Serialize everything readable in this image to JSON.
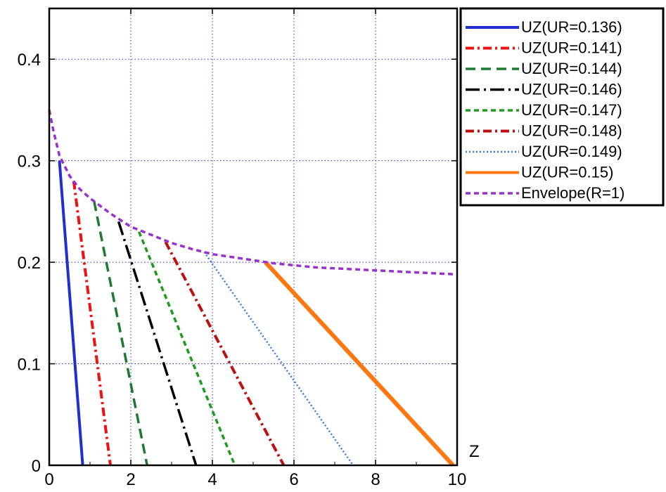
{
  "chart_data": {
    "type": "line",
    "xlabel": "Z",
    "ylabel": "",
    "xlim": [
      0,
      10
    ],
    "ylim": [
      0,
      0.45
    ],
    "x_ticks": [
      "0",
      "2",
      "4",
      "6",
      "8",
      "10"
    ],
    "y_ticks": [
      "0",
      "0.1",
      "0.2",
      "0.3",
      "0.4"
    ],
    "grid": true,
    "legend_position": "outside-right-top",
    "series": [
      {
        "name": "UZ(UR=0.136)",
        "color": "#1f2fd0",
        "dash": "solid",
        "points": [
          [
            0.25,
            0.3
          ],
          [
            0.82,
            0.0
          ]
        ]
      },
      {
        "name": "UZ(UR=0.141)",
        "color": "#ee1111",
        "dash": "dashdot",
        "points": [
          [
            0.6,
            0.28
          ],
          [
            1.5,
            0.0
          ]
        ]
      },
      {
        "name": "UZ(UR=0.144)",
        "color": "#1e7a30",
        "dash": "dashed",
        "points": [
          [
            1.1,
            0.26
          ],
          [
            2.4,
            0.0
          ]
        ]
      },
      {
        "name": "UZ(UR=0.146)",
        "color": "#000000",
        "dash": "longdashdot",
        "points": [
          [
            1.7,
            0.24
          ],
          [
            3.6,
            0.0
          ]
        ]
      },
      {
        "name": "UZ(UR=0.147)",
        "color": "#1e9a1e",
        "dash": "shortdash",
        "points": [
          [
            2.2,
            0.23
          ],
          [
            4.55,
            0.0
          ]
        ]
      },
      {
        "name": "UZ(UR=0.148)",
        "color": "#bb1111",
        "dash": "dashdot",
        "points": [
          [
            2.85,
            0.22
          ],
          [
            5.75,
            0.0
          ]
        ]
      },
      {
        "name": "UZ(UR=0.149)",
        "color": "#3a7be0",
        "dash": "dotted",
        "points": [
          [
            3.8,
            0.21
          ],
          [
            7.45,
            0.0
          ]
        ]
      },
      {
        "name": "UZ(UR=0.15)",
        "color": "#ff7711",
        "dash": "solid",
        "points": [
          [
            5.3,
            0.2
          ],
          [
            9.9,
            0.0
          ]
        ]
      },
      {
        "name": "Envelope(R=1)",
        "color": "#9932cc",
        "dash": "shortdash",
        "points": [
          [
            0,
            0.35
          ],
          [
            0.1,
            0.33
          ],
          [
            0.25,
            0.305
          ],
          [
            0.5,
            0.285
          ],
          [
            0.75,
            0.272
          ],
          [
            1.0,
            0.263
          ],
          [
            1.5,
            0.248
          ],
          [
            2.0,
            0.235
          ],
          [
            2.5,
            0.227
          ],
          [
            3.0,
            0.219
          ],
          [
            3.5,
            0.213
          ],
          [
            4.0,
            0.208
          ],
          [
            4.5,
            0.205
          ],
          [
            5.0,
            0.202
          ],
          [
            5.5,
            0.199
          ],
          [
            6.0,
            0.197
          ],
          [
            6.5,
            0.195
          ],
          [
            7.0,
            0.194
          ],
          [
            7.5,
            0.193
          ],
          [
            8.0,
            0.192
          ],
          [
            8.5,
            0.191
          ],
          [
            9.0,
            0.19
          ],
          [
            9.5,
            0.189
          ],
          [
            10.0,
            0.188
          ]
        ]
      }
    ]
  }
}
